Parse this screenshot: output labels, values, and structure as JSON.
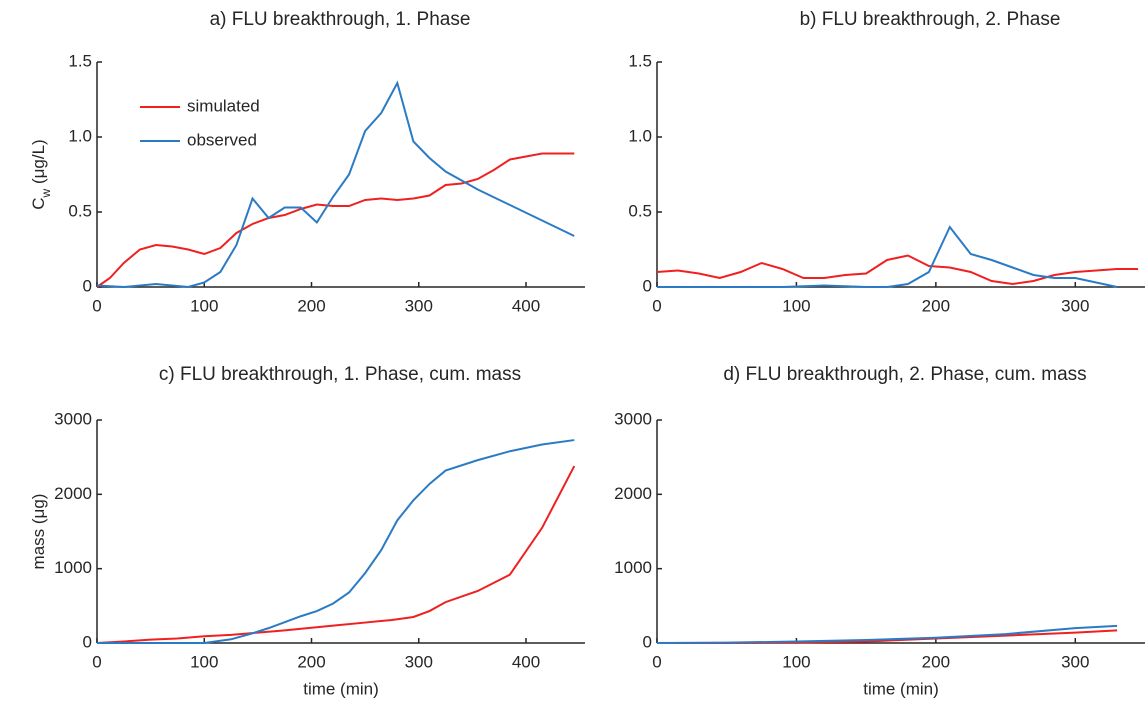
{
  "chart_data": [
    {
      "type": "line",
      "title": "a) FLU breakthrough, 1. Phase",
      "ylabel": [
        "C",
        "w",
        " (μg/L)"
      ],
      "xlim": [
        0,
        455
      ],
      "xticks": [
        0,
        100,
        200,
        300,
        400
      ],
      "ylim": [
        0,
        1.5
      ],
      "yticks": [
        0,
        0.5,
        {
          "value": 1,
          "label": "1.0"
        },
        1.5
      ],
      "legend": "upper left",
      "series": [
        {
          "name": "simulated",
          "color": "#f02020",
          "x": [
            0,
            12,
            25,
            40,
            55,
            70,
            85,
            100,
            115,
            130,
            145,
            160,
            175,
            190,
            205,
            220,
            235,
            250,
            265,
            280,
            295,
            310,
            325,
            340,
            355,
            370,
            385,
            400,
            415,
            430,
            445
          ],
          "values": [
            0,
            0.06,
            0.16,
            0.25,
            0.28,
            0.27,
            0.25,
            0.22,
            0.26,
            0.36,
            0.42,
            0.46,
            0.48,
            0.52,
            0.55,
            0.54,
            0.54,
            0.58,
            0.59,
            0.58,
            0.59,
            0.61,
            0.68,
            0.69,
            0.72,
            0.78,
            0.85,
            0.87,
            0.89,
            0.89,
            0.89
          ]
        },
        {
          "name": "observed",
          "color": "#2b7bc4",
          "x": [
            0,
            25,
            55,
            85,
            100,
            115,
            130,
            145,
            160,
            175,
            190,
            205,
            220,
            235,
            250,
            265,
            280,
            295,
            310,
            325,
            355,
            445
          ],
          "values": [
            0.01,
            0,
            0.02,
            0,
            0.03,
            0.1,
            0.28,
            0.59,
            0.46,
            0.53,
            0.53,
            0.43,
            0.6,
            0.75,
            1.04,
            1.16,
            1.36,
            0.97,
            0.86,
            0.77,
            0.65,
            0.34
          ]
        }
      ]
    },
    {
      "type": "line",
      "title": "b) FLU breakthrough, 2. Phase",
      "xlim": [
        0,
        350
      ],
      "xticks": [
        0,
        100,
        200,
        300
      ],
      "ylim": [
        0,
        1.5
      ],
      "yticks": [
        0,
        0.5,
        {
          "value": 1,
          "label": "1.0"
        },
        1.5
      ],
      "series": [
        {
          "name": "simulated",
          "color": "#f02020",
          "x": [
            0,
            15,
            30,
            45,
            60,
            75,
            90,
            105,
            120,
            135,
            150,
            165,
            180,
            195,
            210,
            225,
            240,
            255,
            270,
            285,
            300,
            315,
            330,
            345
          ],
          "values": [
            0.1,
            0.11,
            0.09,
            0.06,
            0.1,
            0.16,
            0.12,
            0.06,
            0.06,
            0.08,
            0.09,
            0.18,
            0.21,
            0.14,
            0.13,
            0.1,
            0.04,
            0.02,
            0.04,
            0.08,
            0.1,
            0.11,
            0.12,
            0.12
          ]
        },
        {
          "name": "observed",
          "color": "#2b7bc4",
          "x": [
            0,
            30,
            60,
            90,
            120,
            150,
            165,
            180,
            195,
            210,
            225,
            240,
            255,
            270,
            285,
            300,
            315,
            330
          ],
          "values": [
            0,
            0,
            0,
            0,
            0.01,
            0,
            0,
            0.02,
            0.1,
            0.4,
            0.22,
            0.18,
            0.13,
            0.08,
            0.06,
            0.06,
            0.03,
            0
          ]
        }
      ]
    },
    {
      "type": "line",
      "title": "c) FLU breakthrough, 1. Phase, cum. mass",
      "ylabel": [
        "mass (μg)"
      ],
      "xlabel": "time (min)",
      "xlim": [
        0,
        455
      ],
      "xticks": [
        0,
        100,
        200,
        300,
        400
      ],
      "ylim": [
        0,
        3000
      ],
      "yticks": [
        0,
        1000,
        2000,
        3000
      ],
      "series": [
        {
          "name": "simulated",
          "color": "#f02020",
          "x": [
            0,
            25,
            50,
            75,
            100,
            125,
            150,
            175,
            200,
            225,
            250,
            275,
            295,
            310,
            325,
            355,
            385,
            415,
            445
          ],
          "values": [
            0,
            20,
            45,
            60,
            90,
            110,
            140,
            170,
            205,
            240,
            275,
            310,
            350,
            430,
            550,
            700,
            920,
            1550,
            2380
          ]
        },
        {
          "name": "observed",
          "color": "#2b7bc4",
          "x": [
            0,
            100,
            125,
            145,
            160,
            175,
            190,
            205,
            220,
            235,
            250,
            265,
            280,
            295,
            310,
            325,
            355,
            385,
            415,
            445
          ],
          "values": [
            0,
            0,
            50,
            130,
            200,
            280,
            360,
            430,
            530,
            680,
            940,
            1250,
            1650,
            1920,
            2140,
            2320,
            2460,
            2580,
            2670,
            2730
          ]
        }
      ]
    },
    {
      "type": "line",
      "title": "d) FLU breakthrough, 2. Phase, cum. mass",
      "xlabel": "time (min)",
      "xlim": [
        0,
        350
      ],
      "xticks": [
        0,
        100,
        200,
        300
      ],
      "ylim": [
        0,
        3000
      ],
      "yticks": [
        0,
        1000,
        2000,
        3000
      ],
      "series": [
        {
          "name": "simulated",
          "color": "#f02020",
          "x": [
            0,
            50,
            100,
            150,
            200,
            250,
            300,
            330
          ],
          "values": [
            0,
            0,
            5,
            20,
            60,
            100,
            140,
            170
          ]
        },
        {
          "name": "observed",
          "color": "#2b7bc4",
          "x": [
            0,
            50,
            100,
            150,
            200,
            250,
            300,
            330
          ],
          "values": [
            0,
            5,
            20,
            40,
            70,
            120,
            200,
            230
          ]
        }
      ]
    }
  ]
}
